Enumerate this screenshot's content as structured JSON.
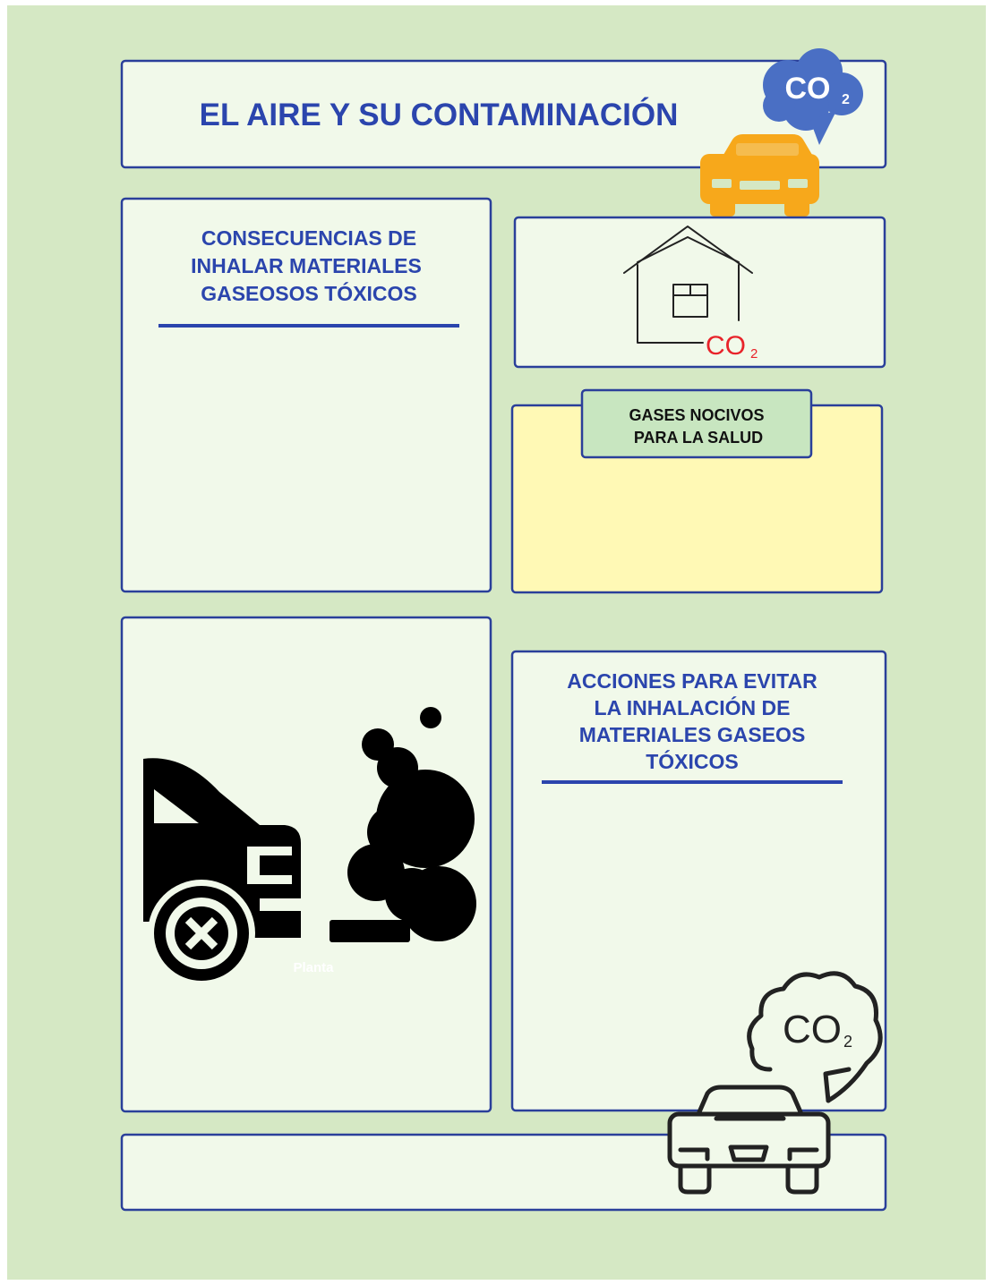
{
  "header": {
    "title": "EL AIRE Y SU CONTAMINACIÓN"
  },
  "consequences": {
    "heading_lines": [
      "CONSECUENCIAS DE",
      "INHALAR MATERIALES",
      "GASEOSOS  TÓXICOS"
    ]
  },
  "gases": {
    "heading_lines": [
      "GASES NOCIVOS",
      "PARA LA SALUD"
    ]
  },
  "actions": {
    "heading_lines": [
      "ACCIONES PARA EVITAR",
      "LA INHALACIÓN DE",
      "MATERIALES GASEOS",
      "TÓXICOS"
    ]
  },
  "icons": {
    "header_cloud": {
      "main": "CO",
      "sub": "2"
    },
    "house": {
      "main": "CO",
      "sub": "2"
    },
    "car_cloud": {
      "main": "CO",
      "sub": "2"
    },
    "smoke_caption": "Planta"
  }
}
